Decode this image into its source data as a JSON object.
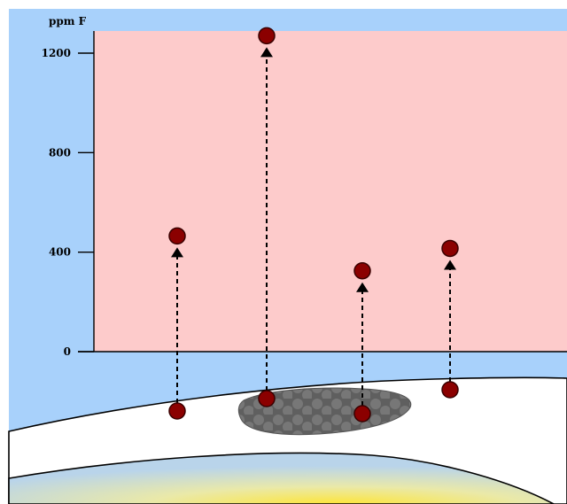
{
  "chart_data": {
    "type": "scatter",
    "ylabel": "ppm F",
    "yticks": [
      0,
      400,
      800,
      1200
    ],
    "ylim": [
      0,
      1290
    ],
    "grid": false,
    "colors": {
      "sky": "#a8d1fb",
      "chart_area": "#fdcbcb",
      "marker": "#8b0000",
      "arrow": "#000000",
      "gum": "#ffffff",
      "lesion": "#6e6e6e",
      "dentin_glow": "#fde36a"
    },
    "pairs": [
      {
        "id": 1,
        "base_position": "below surface",
        "value": 465
      },
      {
        "id": 2,
        "base_position": "in dark lesion",
        "value": 1270
      },
      {
        "id": 3,
        "base_position": "in dark lesion",
        "value": 325
      },
      {
        "id": 4,
        "base_position": "below surface",
        "value": 415
      }
    ]
  }
}
